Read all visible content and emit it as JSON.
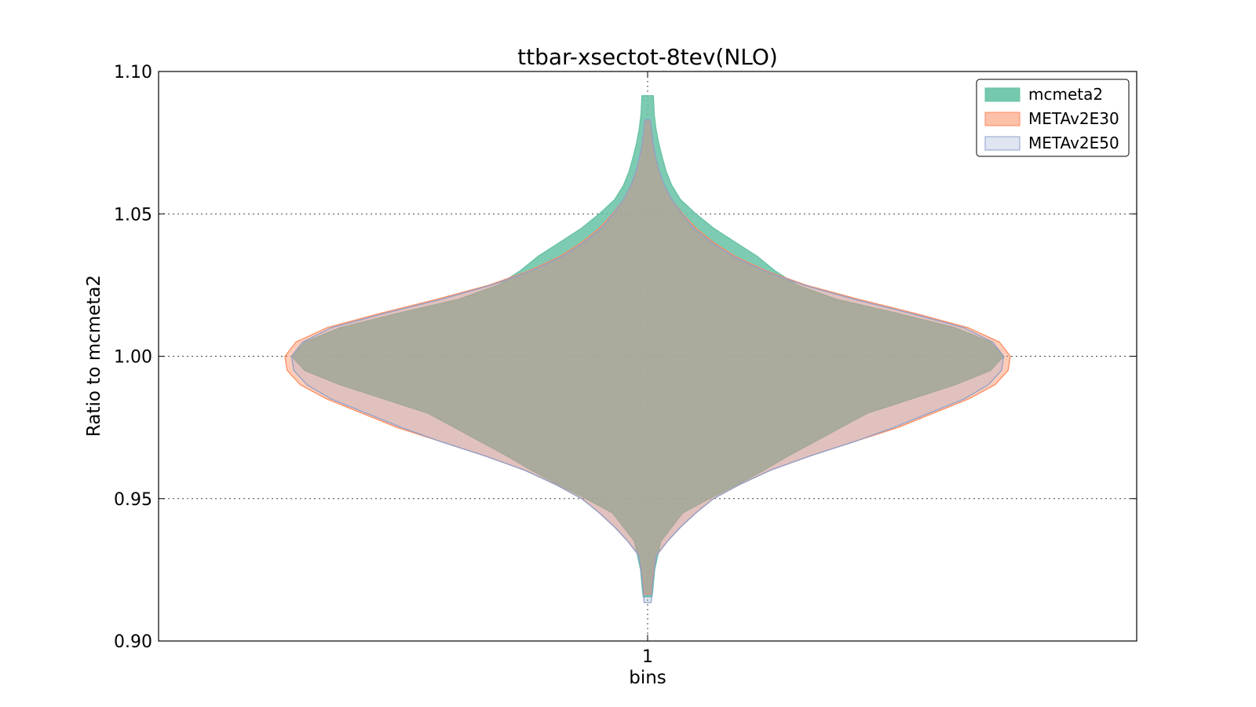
{
  "chart_data": {
    "type": "violin",
    "title": "ttbar-xsectot-8tev(NLO)",
    "xlabel": "bins",
    "ylabel": "Ratio to mcmeta2",
    "categories": [
      "1"
    ],
    "ylim": [
      0.9,
      1.1
    ],
    "yticks": [
      "0.90",
      "0.95",
      "1.00",
      "1.05",
      "1.10"
    ],
    "grid": true,
    "legend_position": "top-right",
    "series": [
      {
        "name": "mcmeta2",
        "color": "#66c2a5",
        "profile": [
          [
            0.9155,
            0.01
          ],
          [
            0.918,
            0.012
          ],
          [
            0.925,
            0.016
          ],
          [
            0.935,
            0.03
          ],
          [
            0.945,
            0.08
          ],
          [
            0.95,
            0.14
          ],
          [
            0.955,
            0.205
          ],
          [
            0.96,
            0.265
          ],
          [
            0.965,
            0.32
          ],
          [
            0.97,
            0.38
          ],
          [
            0.975,
            0.44
          ],
          [
            0.98,
            0.5
          ],
          [
            0.985,
            0.6
          ],
          [
            0.99,
            0.7
          ],
          [
            0.995,
            0.78
          ],
          [
            1.0,
            0.81
          ],
          [
            1.005,
            0.78
          ],
          [
            1.01,
            0.7
          ],
          [
            1.015,
            0.57
          ],
          [
            1.02,
            0.43
          ],
          [
            1.025,
            0.34
          ],
          [
            1.03,
            0.29
          ],
          [
            1.035,
            0.25
          ],
          [
            1.04,
            0.2
          ],
          [
            1.045,
            0.15
          ],
          [
            1.05,
            0.11
          ],
          [
            1.055,
            0.075
          ],
          [
            1.06,
            0.055
          ],
          [
            1.065,
            0.042
          ],
          [
            1.07,
            0.033
          ],
          [
            1.075,
            0.025
          ],
          [
            1.08,
            0.019
          ],
          [
            1.085,
            0.015
          ],
          [
            1.0915,
            0.013
          ]
        ]
      },
      {
        "name": "METAv2E30",
        "color": "#fc8d62",
        "profile": [
          [
            0.9165,
            0.008
          ],
          [
            0.92,
            0.01
          ],
          [
            0.925,
            0.014
          ],
          [
            0.93,
            0.02
          ],
          [
            0.935,
            0.045
          ],
          [
            0.94,
            0.075
          ],
          [
            0.945,
            0.11
          ],
          [
            0.95,
            0.15
          ],
          [
            0.955,
            0.21
          ],
          [
            0.96,
            0.28
          ],
          [
            0.965,
            0.37
          ],
          [
            0.97,
            0.47
          ],
          [
            0.975,
            0.57
          ],
          [
            0.98,
            0.65
          ],
          [
            0.985,
            0.73
          ],
          [
            0.99,
            0.79
          ],
          [
            0.995,
            0.82
          ],
          [
            1.0,
            0.825
          ],
          [
            1.005,
            0.8
          ],
          [
            1.01,
            0.73
          ],
          [
            1.015,
            0.61
          ],
          [
            1.02,
            0.48
          ],
          [
            1.025,
            0.36
          ],
          [
            1.03,
            0.27
          ],
          [
            1.035,
            0.2
          ],
          [
            1.04,
            0.15
          ],
          [
            1.045,
            0.11
          ],
          [
            1.05,
            0.08
          ],
          [
            1.055,
            0.055
          ],
          [
            1.06,
            0.038
          ],
          [
            1.065,
            0.026
          ],
          [
            1.07,
            0.018
          ],
          [
            1.075,
            0.012
          ],
          [
            1.08,
            0.008
          ],
          [
            1.083,
            0.006
          ]
        ]
      },
      {
        "name": "METAv2E50",
        "color": "#8da0cb",
        "profile": [
          [
            0.9135,
            0.008
          ],
          [
            0.9155,
            0.009
          ],
          [
            0.92,
            0.011
          ],
          [
            0.925,
            0.015
          ],
          [
            0.93,
            0.02
          ],
          [
            0.935,
            0.045
          ],
          [
            0.94,
            0.075
          ],
          [
            0.945,
            0.11
          ],
          [
            0.95,
            0.15
          ],
          [
            0.955,
            0.21
          ],
          [
            0.96,
            0.28
          ],
          [
            0.965,
            0.37
          ],
          [
            0.97,
            0.47
          ],
          [
            0.975,
            0.56
          ],
          [
            0.98,
            0.64
          ],
          [
            0.985,
            0.72
          ],
          [
            0.99,
            0.775
          ],
          [
            0.995,
            0.805
          ],
          [
            1.0,
            0.81
          ],
          [
            1.005,
            0.785
          ],
          [
            1.01,
            0.72
          ],
          [
            1.015,
            0.6
          ],
          [
            1.02,
            0.47
          ],
          [
            1.025,
            0.355
          ],
          [
            1.03,
            0.265
          ],
          [
            1.035,
            0.195
          ],
          [
            1.04,
            0.145
          ],
          [
            1.045,
            0.105
          ],
          [
            1.05,
            0.078
          ],
          [
            1.055,
            0.055
          ],
          [
            1.06,
            0.038
          ],
          [
            1.065,
            0.026
          ],
          [
            1.07,
            0.018
          ],
          [
            1.075,
            0.012
          ],
          [
            1.08,
            0.008
          ],
          [
            1.083,
            0.006
          ]
        ]
      }
    ]
  }
}
